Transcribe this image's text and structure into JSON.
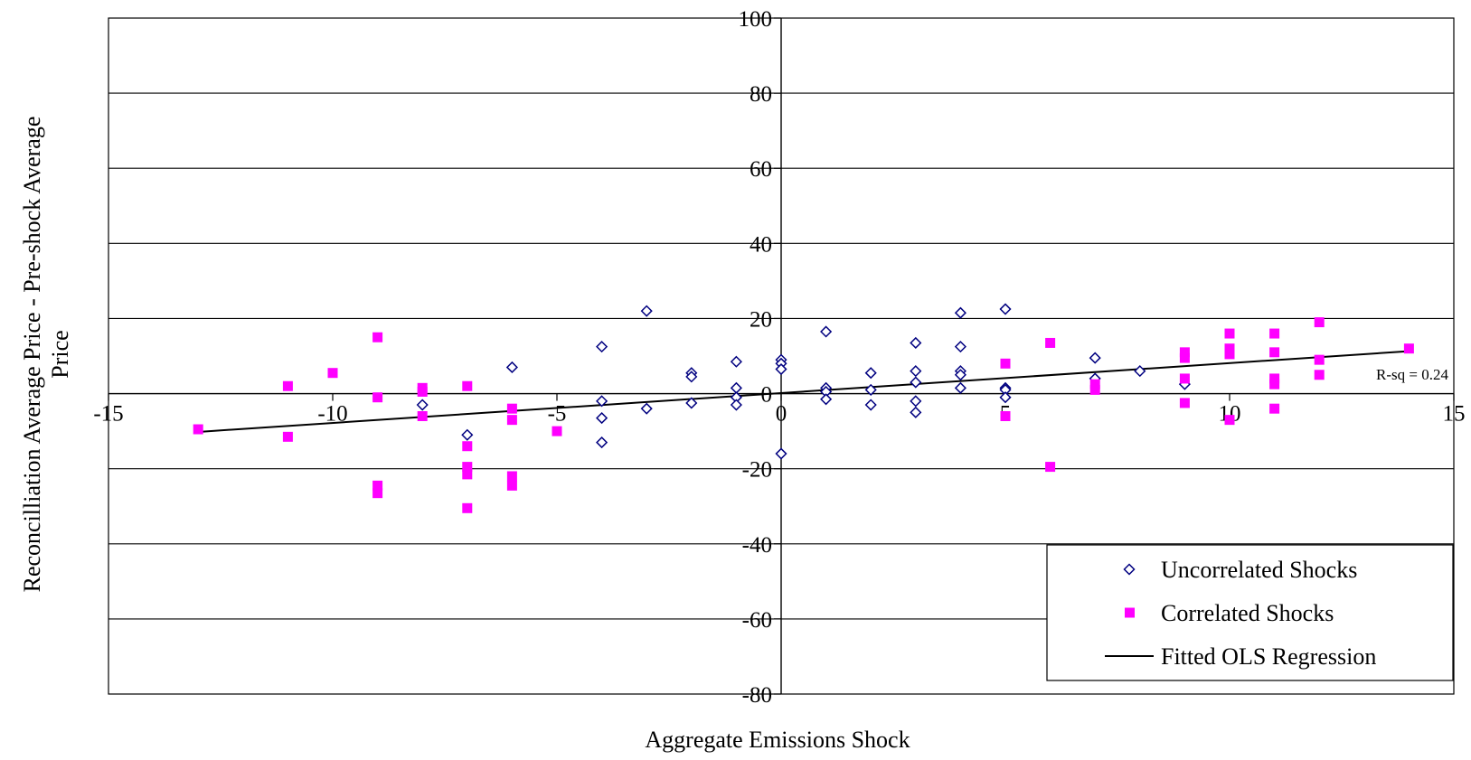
{
  "chart_data": {
    "type": "scatter",
    "xlabel": "Aggregate Emissions Shock",
    "ylabel_lines": [
      "Reconcilliation Average Price - Pre-shock Average",
      "Price"
    ],
    "xlim": [
      -15,
      15
    ],
    "ylim": [
      -80,
      100
    ],
    "x_ticks": [
      -15,
      -10,
      -5,
      0,
      5,
      10,
      15
    ],
    "y_ticks": [
      100,
      80,
      60,
      40,
      20,
      0,
      -20,
      -40,
      -60,
      -80
    ],
    "grid": "horizontal",
    "legend_position": "bottom-right",
    "series": [
      {
        "name": "Uncorrelated Shocks",
        "marker": "open-diamond",
        "color": "#000080",
        "points": [
          [
            -8,
            -3
          ],
          [
            -7,
            -11
          ],
          [
            -6,
            7
          ],
          [
            -4,
            12.5
          ],
          [
            -4,
            -2
          ],
          [
            -4,
            -6.5
          ],
          [
            -4,
            -13
          ],
          [
            -3,
            22
          ],
          [
            -3,
            -4
          ],
          [
            -2,
            5.5
          ],
          [
            -2,
            4.5
          ],
          [
            -2,
            -2.5
          ],
          [
            -1,
            8.5
          ],
          [
            -1,
            1.5
          ],
          [
            -1,
            -1
          ],
          [
            -1,
            -3
          ],
          [
            0,
            9
          ],
          [
            0,
            8
          ],
          [
            0,
            6.5
          ],
          [
            0,
            -16
          ],
          [
            1,
            16.5
          ],
          [
            1,
            1.5
          ],
          [
            1,
            0.5
          ],
          [
            1,
            -1.5
          ],
          [
            2,
            5.5
          ],
          [
            2,
            1
          ],
          [
            2,
            -3
          ],
          [
            3,
            13.5
          ],
          [
            3,
            6
          ],
          [
            3,
            3
          ],
          [
            3,
            -2
          ],
          [
            3,
            -5
          ],
          [
            4,
            21.5
          ],
          [
            4,
            12.5
          ],
          [
            4,
            6
          ],
          [
            4,
            5
          ],
          [
            4,
            1.5
          ],
          [
            5,
            22.5
          ],
          [
            5,
            1.5
          ],
          [
            5,
            1
          ],
          [
            5,
            -1
          ],
          [
            7,
            9.5
          ],
          [
            7,
            4
          ],
          [
            8,
            6
          ],
          [
            9,
            2.5
          ]
        ]
      },
      {
        "name": "Correlated Shocks",
        "marker": "filled-square",
        "color": "#ff00ff",
        "points": [
          [
            -13,
            -9.5
          ],
          [
            -11,
            2
          ],
          [
            -11,
            -11.5
          ],
          [
            -10,
            5.5
          ],
          [
            -9,
            15
          ],
          [
            -9,
            -1
          ],
          [
            -9,
            -24.5
          ],
          [
            -9,
            -26.5
          ],
          [
            -8,
            1.5
          ],
          [
            -8,
            0.5
          ],
          [
            -8,
            -6
          ],
          [
            -7,
            2
          ],
          [
            -7,
            -14
          ],
          [
            -7,
            -19.5
          ],
          [
            -7,
            -21.5
          ],
          [
            -7,
            -30.5
          ],
          [
            -6,
            -4
          ],
          [
            -6,
            -7
          ],
          [
            -6,
            -22
          ],
          [
            -6,
            -24.5
          ],
          [
            -5,
            -10
          ],
          [
            5,
            8
          ],
          [
            5,
            -6
          ],
          [
            6,
            13.5
          ],
          [
            6,
            -19.5
          ],
          [
            7,
            2.5
          ],
          [
            7,
            1
          ],
          [
            9,
            11
          ],
          [
            9,
            9.5
          ],
          [
            9,
            4
          ],
          [
            9,
            -2.5
          ],
          [
            10,
            16
          ],
          [
            10,
            12
          ],
          [
            10,
            10.5
          ],
          [
            10,
            -7
          ],
          [
            11,
            16
          ],
          [
            11,
            11
          ],
          [
            11,
            4
          ],
          [
            11,
            2.5
          ],
          [
            11,
            -4
          ],
          [
            12,
            19
          ],
          [
            12,
            9
          ],
          [
            12,
            5
          ],
          [
            14,
            12
          ]
        ]
      },
      {
        "name": "Fitted OLS Regression",
        "type": "line",
        "color": "#000000",
        "points": [
          [
            -13,
            -10.2
          ],
          [
            14,
            11.3
          ]
        ]
      }
    ],
    "annotations": [
      {
        "text": "R-sq = 0.24",
        "x": 15,
        "y": 5.2
      }
    ]
  }
}
